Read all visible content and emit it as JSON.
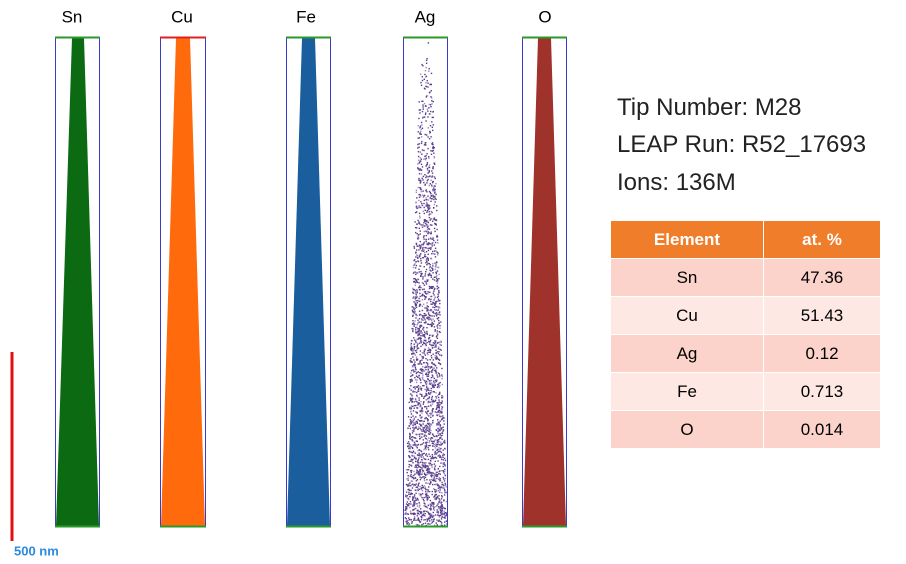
{
  "panels": [
    "Sn",
    "Cu",
    "Fe",
    "Ag",
    "O"
  ],
  "info": [
    "Tip Number: M28",
    "LEAP Run: R52_17693",
    "Ions: 136M"
  ],
  "table": {
    "header": [
      "Element",
      "at. %"
    ],
    "rows": [
      [
        "Sn",
        "47.36"
      ],
      [
        "Cu",
        "51.43"
      ],
      [
        "Ag",
        "0.12"
      ],
      [
        "Fe",
        "0.713"
      ],
      [
        "O",
        "0.014"
      ]
    ]
  },
  "scale_bar": "500 nm"
}
